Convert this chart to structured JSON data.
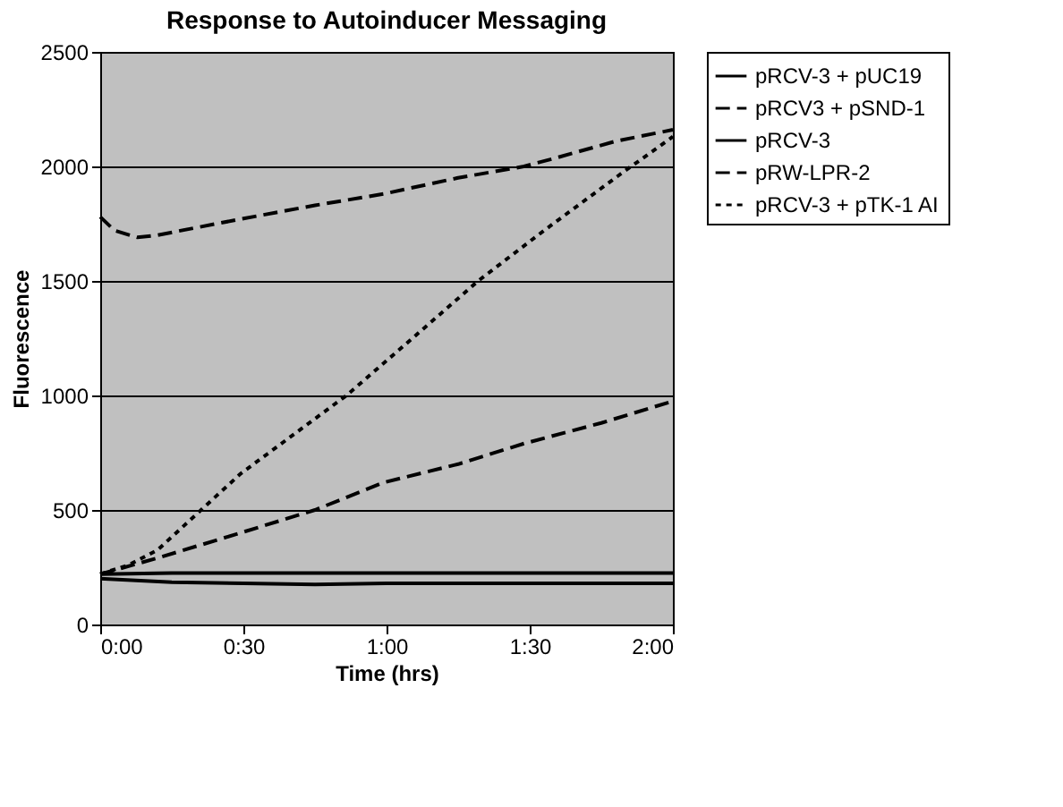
{
  "chart_data": {
    "type": "line",
    "title": "Response to Autoinducer Messaging",
    "xlabel": "Time (hrs)",
    "ylabel": "Fluorescence",
    "xlim": [
      0,
      2
    ],
    "xticks": [
      {
        "value": 0,
        "label": "0:00"
      },
      {
        "value": 0.5,
        "label": "0:30"
      },
      {
        "value": 1,
        "label": "1:00"
      },
      {
        "value": 1.5,
        "label": "1:30"
      },
      {
        "value": 2,
        "label": "2:00"
      }
    ],
    "ylim": [
      0,
      2500
    ],
    "yticks": [
      0,
      500,
      1000,
      1500,
      2000,
      2500
    ],
    "grid": "y",
    "legend": "right",
    "series": [
      {
        "name": "pRCV-3 + pUC19",
        "color": "#000000",
        "line_style": "solid",
        "x": [
          0,
          0.25,
          0.5,
          0.75,
          1,
          1.25,
          1.5,
          1.75,
          2
        ],
        "values": [
          200,
          185,
          180,
          175,
          180,
          180,
          180,
          180,
          180
        ]
      },
      {
        "name": "pRCV3 + pSND-1",
        "color": "#000000",
        "line_style": "dashed",
        "x": [
          0,
          0.05,
          0.13,
          0.2,
          0.49,
          0.75,
          0.99,
          1.25,
          1.48,
          1.6,
          1.8,
          1.96,
          2
        ],
        "values": [
          1780,
          1720,
          1690,
          1700,
          1770,
          1830,
          1880,
          1950,
          2000,
          2040,
          2110,
          2150,
          2160
        ]
      },
      {
        "name": "pRCV-3",
        "color": "#000000",
        "line_style": "solid",
        "x": [
          0,
          0.25,
          0.5,
          0.75,
          1,
          1.25,
          1.5,
          1.75,
          2
        ],
        "values": [
          220,
          225,
          225,
          225,
          225,
          225,
          225,
          225,
          225
        ]
      },
      {
        "name": "pRW-LPR-2",
        "color": "#000000",
        "line_style": "dashed",
        "x": [
          0,
          0.2,
          0.49,
          0.75,
          0.99,
          1.25,
          1.48,
          1.75,
          2
        ],
        "values": [
          220,
          290,
          400,
          500,
          620,
          700,
          790,
          880,
          975
        ]
      },
      {
        "name": "pRCV-3 + pTK-1 AI",
        "color": "#000000",
        "line_style": "dotted",
        "x": [
          0,
          0.1,
          0.2,
          0.49,
          0.86,
          1.1,
          1.32,
          1.55,
          1.81,
          2
        ],
        "values": [
          220,
          260,
          325,
          658,
          1000,
          1260,
          1500,
          1720,
          1960,
          2130
        ]
      }
    ]
  }
}
